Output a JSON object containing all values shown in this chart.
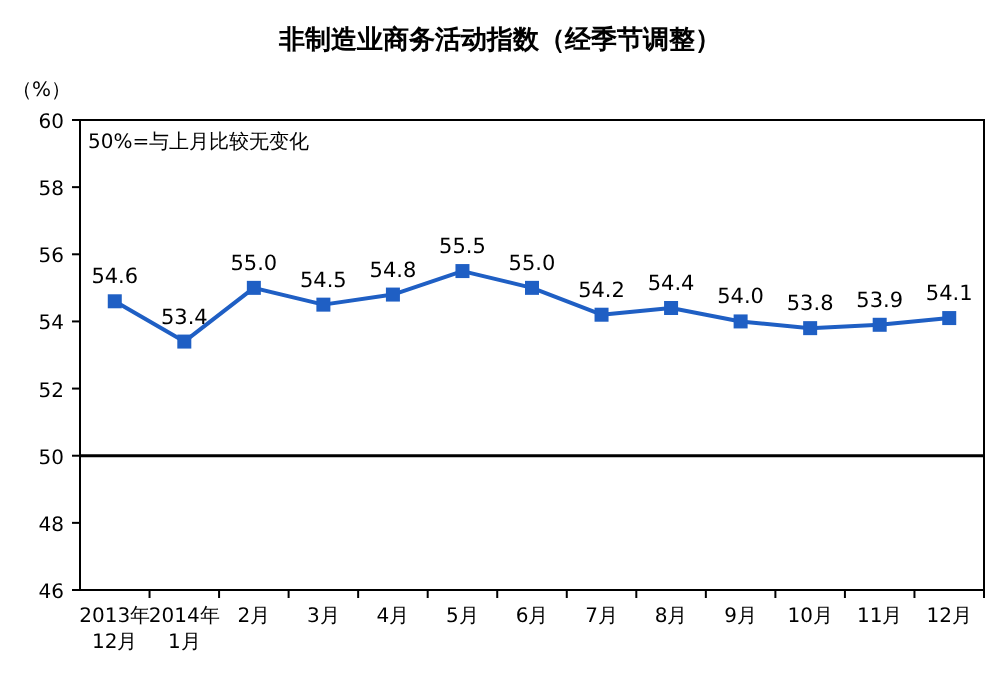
{
  "chart_data": {
    "type": "line",
    "title": "非制造业商务活动指数（经季节调整）",
    "ylabel": "（%）",
    "annotations": [
      "50%=与上月比较无变化"
    ],
    "categories": [
      "2013年\n12月",
      "2014年\n1月",
      "2月",
      "3月",
      "4月",
      "5月",
      "6月",
      "7月",
      "8月",
      "9月",
      "10月",
      "11月",
      "12月"
    ],
    "series": [
      {
        "color": "#1f5fc4",
        "values": [
          54.6,
          53.4,
          55.0,
          54.5,
          54.8,
          55.5,
          55.0,
          54.2,
          54.4,
          54.0,
          53.8,
          53.9,
          54.1
        ]
      }
    ],
    "ylim": [
      46,
      60
    ],
    "yticks": [
      46,
      48,
      50,
      52,
      54,
      56,
      58,
      60
    ],
    "ref_lines": [
      {
        "axis": "y",
        "value": 50,
        "color": "#000000",
        "line_style": "solid"
      }
    ],
    "value_labels": [
      "54.6",
      "53.4",
      "55.0",
      "54.5",
      "54.8",
      "55.5",
      "55.0",
      "54.2",
      "54.4",
      "54.0",
      "53.8",
      "53.9",
      "54.1"
    ],
    "marker": "square",
    "line_style": "solid",
    "grid": false
  }
}
